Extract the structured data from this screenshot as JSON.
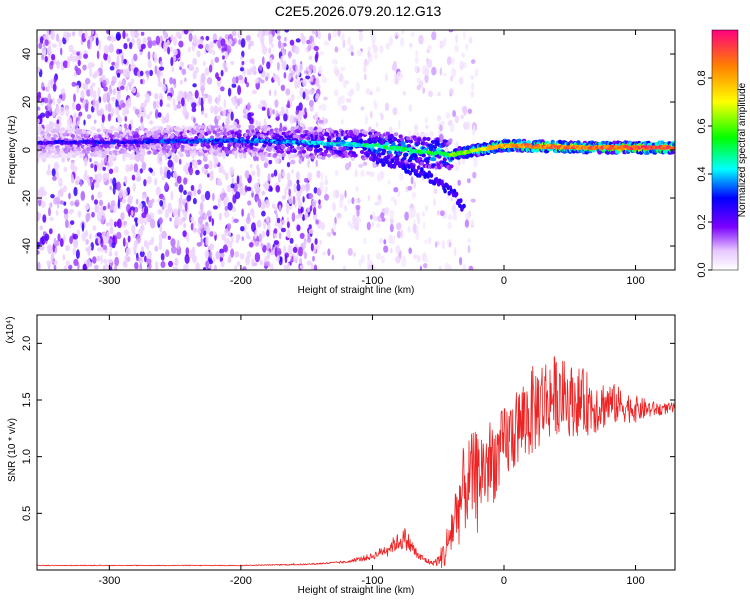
{
  "title": "C2E5.2026.079.20.12.G13",
  "chart_data": [
    {
      "type": "heatmap",
      "name": "spectrogram",
      "xlabel": "Height of straight line (km)",
      "ylabel": "Frequency (Hz)",
      "xlim": [
        -355,
        130
      ],
      "ylim": [
        -50,
        50
      ],
      "xticks": [
        -300,
        -200,
        -100,
        0,
        100
      ],
      "yticks": [
        -40,
        -20,
        0,
        20,
        40
      ],
      "colorbar": {
        "label": "Normalized spectral amplitude",
        "range": [
          0.0,
          1.0
        ],
        "ticks": [
          "0.0",
          "0.2",
          "0.4",
          "0.6",
          "0.8"
        ]
      },
      "features": [
        {
          "kind": "scatter_noise",
          "x_range": [
            -355,
            -140
          ],
          "y_range": [
            -50,
            50
          ],
          "level": 0.1
        },
        {
          "kind": "sparse_noise",
          "x_range": [
            -140,
            -20
          ],
          "y_range": [
            -50,
            50
          ],
          "level": 0.05
        },
        {
          "kind": "carrier_band",
          "x": [
            -355,
            -200,
            -150,
            -100,
            -60,
            -40,
            -20,
            0,
            60,
            130
          ],
          "y_center": [
            3,
            4,
            3,
            2,
            -1,
            -2,
            0,
            2,
            1,
            1
          ],
          "level": [
            0.15,
            0.25,
            0.3,
            0.4,
            0.45,
            0.5,
            0.6,
            0.75,
            0.8,
            0.85
          ]
        },
        {
          "kind": "lower_branch",
          "x": [
            -100,
            -80,
            -60,
            -40,
            -30
          ],
          "y": [
            -3,
            -6,
            -10,
            -17,
            -25
          ],
          "level": 0.2
        }
      ]
    },
    {
      "type": "line",
      "name": "snr",
      "xlabel": "Height of straight line (km)",
      "ylabel": "SNR (10 * v/v)",
      "scale_label": "(x10⁴)",
      "xlim": [
        -355,
        130
      ],
      "ylim": [
        0,
        2.25
      ],
      "xticks": [
        -300,
        -200,
        -100,
        0,
        100
      ],
      "yticks": [
        0.5,
        1.0,
        1.5,
        2.0
      ],
      "ytick_labels": [
        "0.5",
        "1.0",
        "1.5",
        "2.0"
      ],
      "color": "#ee2222",
      "series": [
        {
          "name": "SNR",
          "x": [
            -355,
            -300,
            -250,
            -200,
            -150,
            -120,
            -100,
            -90,
            -80,
            -75,
            -65,
            -55,
            -50,
            -45,
            -40,
            -35,
            -30,
            -25,
            -20,
            -15,
            -10,
            -5,
            0,
            10,
            20,
            30,
            40,
            50,
            60,
            70,
            80,
            90,
            100,
            110,
            120,
            130
          ],
          "y": [
            0.04,
            0.04,
            0.04,
            0.04,
            0.05,
            0.07,
            0.12,
            0.18,
            0.25,
            0.28,
            0.12,
            0.06,
            0.08,
            0.15,
            0.35,
            0.55,
            0.72,
            0.8,
            0.85,
            0.9,
            0.95,
            1.0,
            1.1,
            1.25,
            1.38,
            1.5,
            1.55,
            1.5,
            1.48,
            1.45,
            1.47,
            1.45,
            1.42,
            1.42,
            1.42,
            1.43
          ],
          "amplitude": [
            0.003,
            0.003,
            0.003,
            0.004,
            0.006,
            0.01,
            0.03,
            0.05,
            0.08,
            0.1,
            0.04,
            0.02,
            0.05,
            0.15,
            0.25,
            0.35,
            0.4,
            0.4,
            0.4,
            0.4,
            0.4,
            0.35,
            0.35,
            0.35,
            0.4,
            0.4,
            0.35,
            0.32,
            0.3,
            0.25,
            0.2,
            0.15,
            0.12,
            0.08,
            0.05,
            0.05
          ]
        }
      ]
    }
  ]
}
